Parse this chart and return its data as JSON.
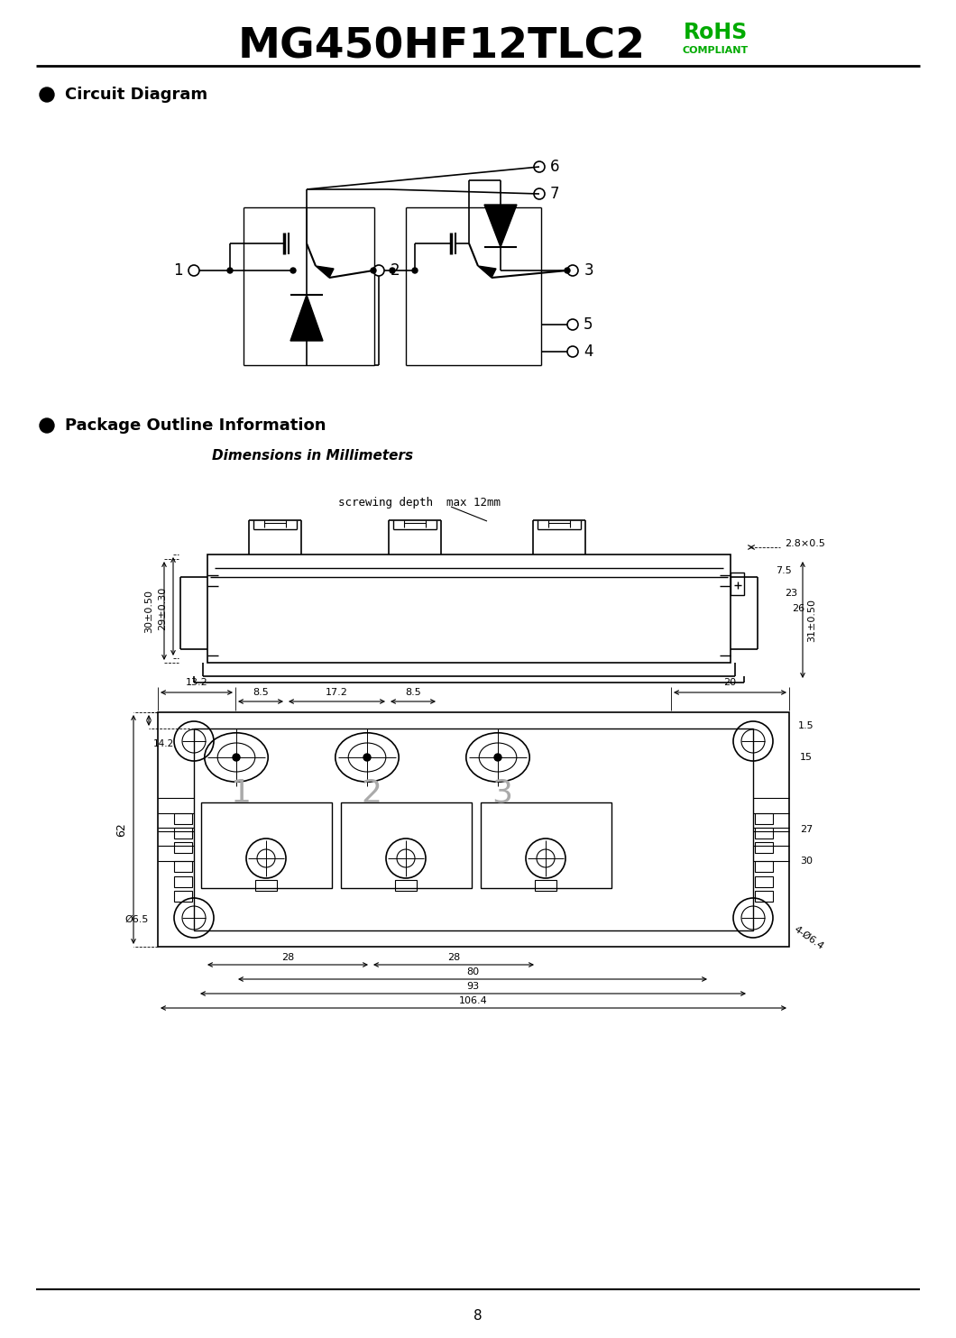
{
  "title": "MG450HF12TLC2",
  "rohs_line1": "RoHS",
  "rohs_line2": "COMPLIANT",
  "rohs_color": "#00aa00",
  "section1_bullet": "Circuit Diagram",
  "section2_bullet": "Package Outline Information",
  "dim_subtitle": "Dimensions in Millimeters",
  "screwing_text": "screwing depth  max 12mm",
  "dim_28x05": "2.8×0.5",
  "dim_left1": "30±0.50",
  "dim_left2": "29±0.30",
  "dim_right1": "7.5",
  "dim_right2": "23",
  "dim_right3": "26",
  "dim_right4": "31±0.50",
  "dim_top_13_2": "13.2",
  "dim_top_20": "20",
  "dim_1_5": "1.5",
  "dim_8_5a": "8.5",
  "dim_17_2": "17.2",
  "dim_8_5b": "8.5",
  "dim_62": "62",
  "dim_14_2": "14.2",
  "dim_o6_5": "Ø6.5",
  "dim_28a": "28",
  "dim_28b": "28",
  "dim_80": "80",
  "dim_93": "93",
  "dim_106_4": "106.4",
  "dim_15": "15",
  "dim_27": "27",
  "dim_30": "30",
  "dim_4o6_4": "4-Ø6.4",
  "page_num": "8",
  "bg_color": "#ffffff",
  "line_color": "#000000"
}
